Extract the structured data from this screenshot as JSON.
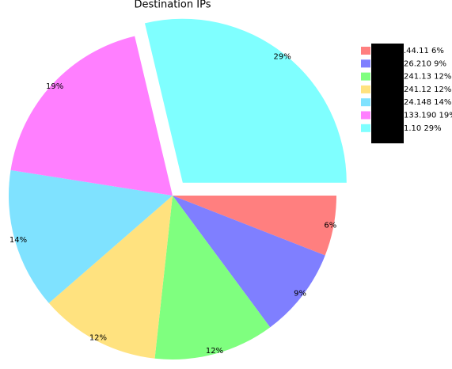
{
  "chart_data": {
    "type": "pie",
    "title": "Destination IPs",
    "categories": [
      ".44.11 6%",
      "26.210 9%",
      "241.13 12%",
      "241.12 12%",
      "24.148 14%",
      "133.190 19%",
      "1.10 29%"
    ],
    "values": [
      6,
      9,
      12,
      12,
      14,
      19,
      29
    ],
    "value_labels": [
      "6%",
      "9%",
      "12%",
      "12%",
      "14%",
      "19%",
      "29%"
    ],
    "colors": [
      "#ff7f7f",
      "#7f7fff",
      "#7fff7f",
      "#ffe27f",
      "#7fe2ff",
      "#ff7fff",
      "#7fffff"
    ],
    "explode": [
      0,
      0,
      0,
      0,
      0,
      0,
      0.1
    ]
  }
}
